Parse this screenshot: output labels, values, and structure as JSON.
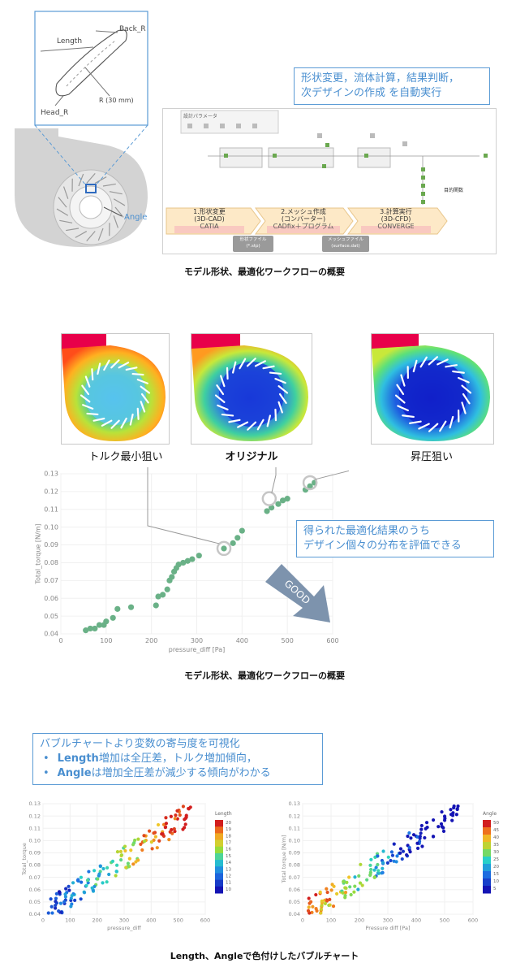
{
  "top": {
    "callout_line1": "形状変更，流体計算，結果判断，",
    "callout_line2": "次デザインの作成 を自動実行",
    "geom_labels": {
      "length": "Length",
      "back_r": "Back_R",
      "head_r": "Head_R",
      "radius": "R (30 mm)",
      "angle": "Angle"
    },
    "workflow_title": "設計パラメータ",
    "steps": [
      {
        "num": "1.形状変更",
        "sub": "(3D-CAD)",
        "tool": "CATIA"
      },
      {
        "num": "2.メッシュ作成",
        "sub": "(コンバーター)",
        "tool": "CADfix＋プログラム"
      },
      {
        "num": "3.計算実行",
        "sub": "(3D-CFD)",
        "tool": "CONVERGE"
      }
    ],
    "files": [
      {
        "line1": "形状ファイル",
        "line2": "(*.stp)"
      },
      {
        "line1": "メッシュファイル",
        "line2": "(surface.dat)"
      }
    ],
    "objective_label": "目的関数",
    "caption": "モデル形状、最適化ワークフローの概要"
  },
  "middle": {
    "labels": {
      "min_torque": "トルク最小狙い",
      "original": "オリジナル",
      "pressure": "昇圧狙い"
    },
    "callout_line1": "得られた最適化結果のうち",
    "callout_line2": "デザイン個々の分布を評価できる",
    "good_label": "GOOD",
    "caption": "モデル形状、最適化ワークフローの概要"
  },
  "bottom": {
    "callout_title": "バブルチャートより変数の寄与度を可視化",
    "bullet1_strong": "Length",
    "bullet1_rest": "増加は全圧差，トルク増加傾向，",
    "bullet2_strong": "Angle",
    "bullet2_rest": "は増加全圧差が減少する傾向がわかる",
    "caption": "Length、Angleで色付けしたバブルチャート",
    "bullet_mark": "•"
  },
  "colors": {
    "callout_blue": "#4a8fd0",
    "point_green": "#6ab187",
    "good_arrow": "#7d93ad"
  },
  "chart_data": [
    {
      "type": "scatter",
      "xlabel": "pressure_diff [Pa]",
      "ylabel": "Total_torque [N/m]",
      "xlim": [
        0,
        600
      ],
      "ylim": [
        0.04,
        0.13
      ],
      "xticks": [
        0,
        100,
        200,
        300,
        400,
        500,
        600
      ],
      "yticks": [
        0.04,
        0.05,
        0.06,
        0.07,
        0.08,
        0.09,
        0.1,
        0.11,
        0.12,
        0.13
      ],
      "ytick_labels": [
        "0.04",
        "0.05",
        "0.06",
        "0.07",
        "0.08",
        "0.09",
        "0.10",
        "0.11",
        "0.12",
        "0.13"
      ],
      "highlighted": [
        [
          360,
          0.088
        ],
        [
          460,
          0.116
        ],
        [
          550,
          0.125
        ]
      ],
      "points": [
        [
          55,
          0.042
        ],
        [
          65,
          0.043
        ],
        [
          75,
          0.043
        ],
        [
          85,
          0.045
        ],
        [
          95,
          0.045
        ],
        [
          100,
          0.047
        ],
        [
          115,
          0.049
        ],
        [
          125,
          0.054
        ],
        [
          155,
          0.055
        ],
        [
          210,
          0.056
        ],
        [
          215,
          0.061
        ],
        [
          225,
          0.062
        ],
        [
          235,
          0.065
        ],
        [
          240,
          0.07
        ],
        [
          245,
          0.072
        ],
        [
          250,
          0.075
        ],
        [
          255,
          0.077
        ],
        [
          260,
          0.079
        ],
        [
          270,
          0.08
        ],
        [
          280,
          0.081
        ],
        [
          290,
          0.082
        ],
        [
          305,
          0.084
        ],
        [
          360,
          0.088
        ],
        [
          380,
          0.091
        ],
        [
          390,
          0.094
        ],
        [
          400,
          0.098
        ],
        [
          455,
          0.109
        ],
        [
          465,
          0.111
        ],
        [
          480,
          0.113
        ],
        [
          490,
          0.115
        ],
        [
          500,
          0.116
        ],
        [
          540,
          0.121
        ],
        [
          550,
          0.123
        ],
        [
          560,
          0.125
        ]
      ]
    },
    {
      "type": "scatter",
      "xlabel": "pressure_diff",
      "ylabel": "Total_torque",
      "legend_title": "Length",
      "color_range": [
        10,
        20
      ],
      "legend_ticks": [
        "20",
        "19",
        "18",
        "17",
        "16",
        "15",
        "14",
        "13",
        "12",
        "11",
        "10"
      ],
      "xlim": [
        0,
        600
      ],
      "ylim": [
        0.04,
        0.13
      ],
      "xticks": [
        0,
        100,
        200,
        300,
        400,
        500,
        600
      ],
      "yticks": [
        0.04,
        0.05,
        0.06,
        0.07,
        0.08,
        0.09,
        0.1,
        0.11,
        0.12,
        0.13
      ],
      "ytick_labels": [
        "0.04",
        "0.05",
        "0.06",
        "0.07",
        "0.08",
        "0.09",
        "0.10",
        "0.11",
        "0.12",
        "0.13"
      ]
    },
    {
      "type": "scatter",
      "xlabel": "Pressure diff [Pa]",
      "ylabel": "Total torque [N/m]",
      "legend_title": "Angle",
      "color_range": [
        5,
        50
      ],
      "legend_ticks": [
        "50",
        "45",
        "40",
        "35",
        "30",
        "25",
        "20",
        "15",
        "10",
        "5"
      ],
      "xlim": [
        0,
        600
      ],
      "ylim": [
        0.04,
        0.13
      ],
      "xticks": [
        0,
        100,
        200,
        300,
        400,
        500,
        600
      ],
      "yticks": [
        0.04,
        0.05,
        0.06,
        0.07,
        0.08,
        0.09,
        0.1,
        0.11,
        0.12,
        0.13
      ],
      "ytick_labels": [
        "0.04",
        "0.05",
        "0.06",
        "0.07",
        "0.08",
        "0.09",
        "0.10",
        "0.11",
        "0.12",
        "0.13"
      ]
    }
  ]
}
